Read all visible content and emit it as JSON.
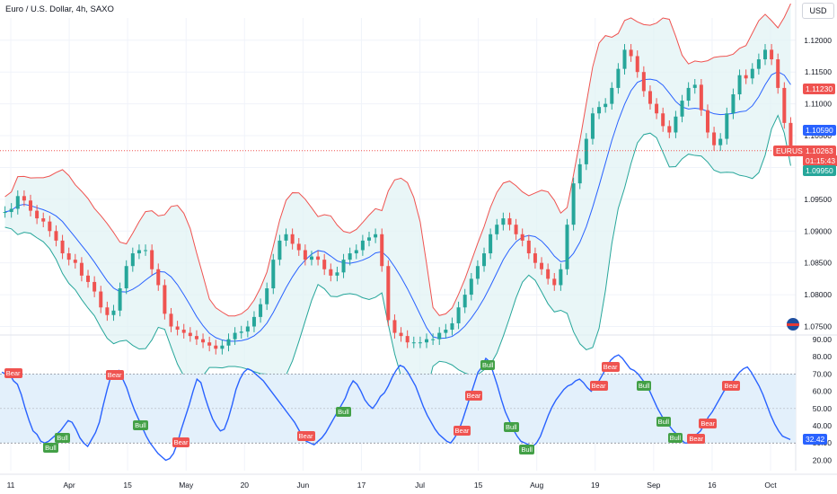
{
  "header": {
    "title": "Euro / U.S. Dollar, 4h, SAXO",
    "currency": "USD"
  },
  "colors": {
    "up": "#26a69a",
    "down": "#ef5350",
    "basis": "#2962ff",
    "upper": "#ef5350",
    "lower": "#26a69a",
    "fill": "#e0f2f4",
    "rsi": "#2962ff",
    "rsiBand": "#e3f0fb"
  },
  "chart_data": [
    {
      "type": "candlestick",
      "title": "Euro / U.S. Dollar, 4h, SAXO",
      "xlabel": "",
      "ylabel": "",
      "ylim": [
        1.0738,
        1.1235
      ],
      "x_ticks": [
        "11",
        "Apr",
        "15",
        "May",
        "20",
        "Jun",
        "17",
        "Jul",
        "15",
        "Aug",
        "19",
        "Sep",
        "16",
        "Oct"
      ],
      "y_ticks": [
        "1.12000",
        "1.11500",
        "1.11000",
        "1.10500",
        "1.10000",
        "1.09500",
        "1.09000",
        "1.08500",
        "1.08000",
        "1.07500"
      ],
      "close": [
        1.093,
        1.0935,
        1.0955,
        1.0948,
        1.0932,
        1.092,
        1.0915,
        1.09,
        1.0885,
        1.0865,
        1.0855,
        1.085,
        1.083,
        1.082,
        1.0805,
        1.078,
        1.0768,
        1.0775,
        1.081,
        1.0845,
        1.0865,
        1.087,
        1.087,
        1.084,
        1.0815,
        1.077,
        1.075,
        1.0745,
        1.074,
        1.0735,
        1.073,
        1.0725,
        1.072,
        1.0715,
        1.072,
        1.073,
        1.074,
        1.0742,
        1.075,
        1.0765,
        1.0785,
        1.081,
        1.0855,
        1.0885,
        1.0895,
        1.088,
        1.087,
        1.0855,
        1.086,
        1.0855,
        1.084,
        1.083,
        1.0835,
        1.0855,
        1.0865,
        1.087,
        1.0885,
        1.089,
        1.0895,
        1.0845,
        1.076,
        1.074,
        1.0735,
        1.0725,
        1.0725,
        1.0725,
        1.073,
        1.073,
        1.074,
        1.0745,
        1.0755,
        1.078,
        1.08,
        1.0825,
        1.0845,
        1.0865,
        1.0895,
        1.091,
        1.092,
        1.091,
        1.0895,
        1.0885,
        1.0865,
        1.085,
        1.084,
        1.0825,
        1.0815,
        1.084,
        1.091,
        1.0975,
        1.1005,
        1.1045,
        1.1085,
        1.1095,
        1.11,
        1.1125,
        1.1155,
        1.1185,
        1.1175,
        1.115,
        1.112,
        1.11,
        1.1085,
        1.1065,
        1.1055,
        1.108,
        1.1105,
        1.1125,
        1.113,
        1.109,
        1.1055,
        1.1035,
        1.1045,
        1.1085,
        1.1115,
        1.1145,
        1.114,
        1.1155,
        1.117,
        1.1185,
        1.117,
        1.1125,
        1.107,
        1.1026
      ],
      "series": [
        {
          "name": "EURUSD",
          "last": "1.10263",
          "countdown": "01:15:43"
        }
      ],
      "price_labels": [
        {
          "text": "1.11230",
          "value": 1.1123,
          "color": "#ef5350"
        },
        {
          "text": "1.10590",
          "value": 1.1059,
          "color": "#2962ff"
        },
        {
          "text": "EURUSD",
          "value": 1.10263,
          "color": "#ef5350"
        },
        {
          "text": "1.10263",
          "value": 1.10263,
          "color": "#ef5350"
        },
        {
          "text": "01:15:43",
          "value": 1.10263,
          "color": "#ef5350"
        },
        {
          "text": "1.09950",
          "value": 1.0995,
          "color": "#26a69a"
        }
      ]
    },
    {
      "type": "line",
      "title": "",
      "ylim": [
        14,
        92
      ],
      "y_ticks": [
        "90.00",
        "80.00",
        "70.00",
        "60.00",
        "50.00",
        "40.00",
        "30.00",
        "20.00"
      ],
      "bands": [
        30,
        70
      ],
      "midline": 50,
      "values": [
        71,
        70,
        70,
        66,
        64,
        58,
        50,
        43,
        37,
        35,
        31,
        30,
        31,
        33,
        35,
        37,
        40,
        43,
        42,
        38,
        33,
        30,
        28,
        32,
        36,
        42,
        52,
        61,
        69,
        71,
        72,
        67,
        62,
        55,
        49,
        44,
        39,
        34,
        30,
        27,
        24,
        22,
        20,
        21,
        24,
        30,
        38,
        45,
        52,
        60,
        67,
        65,
        57,
        50,
        44,
        40,
        37,
        38,
        44,
        52,
        61,
        67,
        71,
        73,
        72,
        70,
        68,
        66,
        63,
        60,
        57,
        54,
        51,
        48,
        45,
        42,
        38,
        34,
        31,
        30,
        29,
        31,
        33,
        36,
        40,
        44,
        48,
        52,
        56,
        62,
        66,
        64,
        60,
        55,
        52,
        50,
        53,
        57,
        59,
        63,
        68,
        72,
        75,
        74,
        71,
        67,
        63,
        57,
        51,
        46,
        42,
        38,
        35,
        33,
        31,
        30,
        33,
        37,
        43,
        50,
        57,
        64,
        71,
        74,
        79,
        77,
        70,
        63,
        55,
        48,
        43,
        38,
        34,
        31,
        30,
        29,
        28,
        30,
        34,
        40,
        46,
        51,
        55,
        58,
        61,
        63,
        64,
        66,
        67,
        65,
        62,
        60,
        63,
        66,
        70,
        74,
        78,
        80,
        81,
        79,
        76,
        73,
        72,
        70,
        67,
        64,
        60,
        55,
        50,
        46,
        42,
        40,
        37,
        35,
        32,
        30,
        30,
        32,
        35,
        37,
        41,
        45,
        48,
        52,
        56,
        60,
        63,
        65,
        68,
        71,
        73,
        74,
        71,
        67,
        63,
        58,
        52,
        46,
        41,
        37,
        34,
        33,
        32
      ],
      "series": [
        {
          "name": "",
          "last": "32.42"
        }
      ],
      "annotations": [
        {
          "text": "Bear",
          "at": 0.012
        },
        {
          "text": "Bear",
          "at": 0.139
        },
        {
          "text": "Bear",
          "at": 0.222
        },
        {
          "text": "Bear",
          "at": 0.383
        },
        {
          "text": "Bear",
          "at": 0.578
        },
        {
          "text": "Bear",
          "at": 0.594
        },
        {
          "text": "Bear",
          "at": 0.751
        },
        {
          "text": "Bear",
          "at": 0.767
        },
        {
          "text": "Bear",
          "at": 0.877
        },
        {
          "text": "Bear",
          "at": 0.889
        },
        {
          "text": "Bear",
          "at": 0.921
        },
        {
          "text": "Bull",
          "at": 0.061
        },
        {
          "text": "Bull",
          "at": 0.073
        },
        {
          "text": "Bull",
          "at": 0.175
        },
        {
          "text": "Bull",
          "at": 0.43
        },
        {
          "text": "Bull",
          "at": 0.616
        },
        {
          "text": "Bull",
          "at": 0.645
        },
        {
          "text": "Bull",
          "at": 0.662
        },
        {
          "text": "Bull",
          "at": 0.814
        },
        {
          "text": "Bull",
          "at": 0.836
        },
        {
          "text": "Bull",
          "at": 0.853
        }
      ]
    }
  ]
}
